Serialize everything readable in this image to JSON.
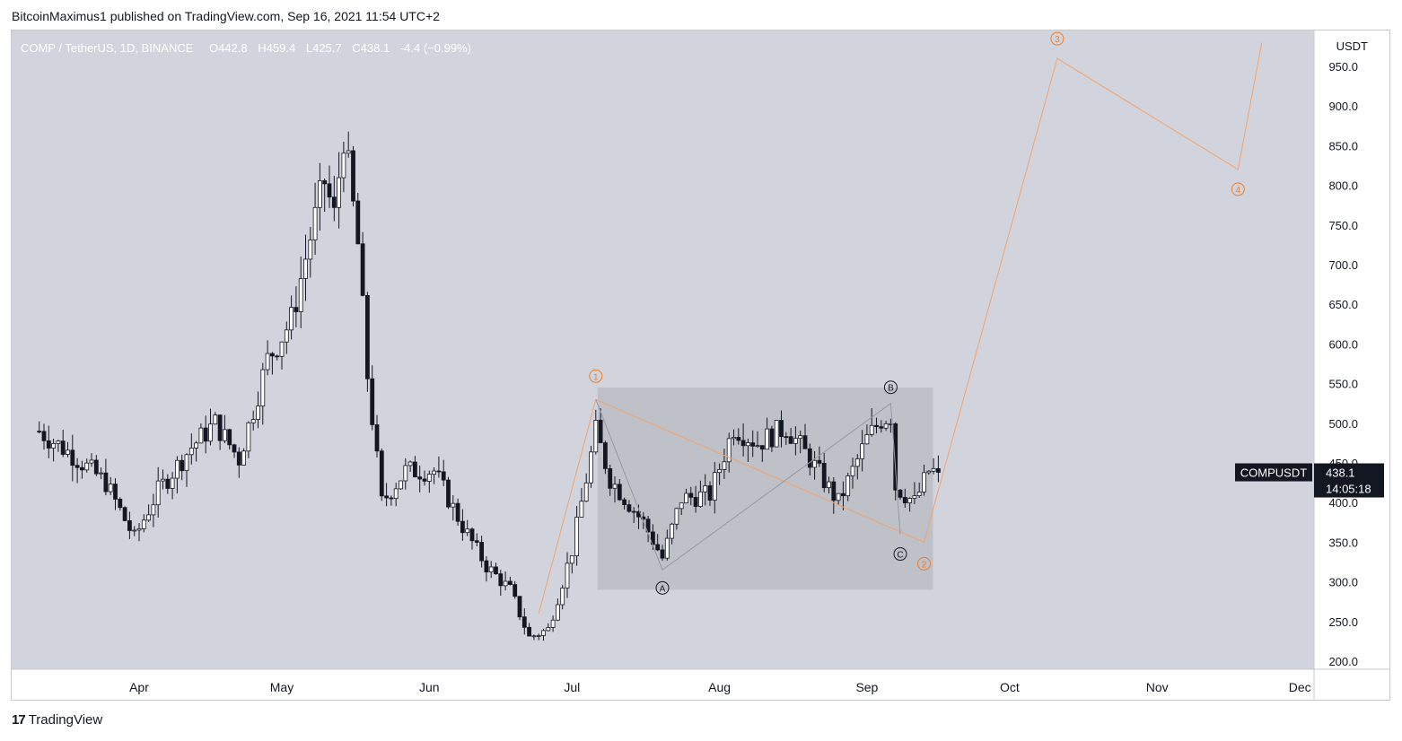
{
  "header": {
    "publisher": "BitcoinMaximus1 published on TradingView.com, Sep 16, 2021 11:54 UTC+2"
  },
  "footer": {
    "brand": "TradingView"
  },
  "legend": {
    "symbol": "COMP / TetherUS, 1D, BINANCE",
    "o_label": "O",
    "open": "442.8",
    "h_label": "H",
    "high": "459.4",
    "l_label": "L",
    "low": "425.7",
    "c_label": "C",
    "close": "438.1",
    "change": "-4.4 (−0.99%)"
  },
  "price_axis": {
    "currency": "USDT",
    "ticks": [
      "950.0",
      "900.0",
      "850.0",
      "800.0",
      "750.0",
      "700.0",
      "650.0",
      "600.0",
      "550.0",
      "500.0",
      "450.0",
      "400.0",
      "350.0",
      "300.0",
      "250.0",
      "200.0"
    ]
  },
  "price_tag": {
    "symbol": "COMPUSDT",
    "price": "438.1",
    "countdown": "14:05:18"
  },
  "colors": {
    "background": "#d1d4dc",
    "bull_candle": "#ffffff",
    "bear_candle": "#131722",
    "wave_orange": "#f5a26a",
    "wave_label_orange": "#f07d2d",
    "box": "#bbbdc3"
  },
  "chart_data": {
    "type": "candlestick",
    "title": "COMP / TetherUS, 1D, BINANCE",
    "xlabel": "",
    "ylabel": "USDT",
    "x_ticks": [
      "Apr",
      "May",
      "Jun",
      "Jul",
      "Aug",
      "Sep",
      "Oct",
      "Nov",
      "Dec"
    ],
    "ylim": [
      190,
      980
    ],
    "series": [
      {
        "name": "COMP / TetherUS",
        "notes": "Daily candles approx. Mar 11 2021 – Sep 16 2021",
        "close_path_points": [
          [
            "2021-03-11",
            490
          ],
          [
            "2021-03-18",
            460
          ],
          [
            "2021-03-25",
            425
          ],
          [
            "2021-03-31",
            355
          ],
          [
            "2021-04-05",
            415
          ],
          [
            "2021-04-12",
            470
          ],
          [
            "2021-04-17",
            500
          ],
          [
            "2021-04-22",
            455
          ],
          [
            "2021-04-28",
            580
          ],
          [
            "2021-05-03",
            630
          ],
          [
            "2021-05-07",
            735
          ],
          [
            "2021-05-10",
            805
          ],
          [
            "2021-05-12",
            760
          ],
          [
            "2021-05-14",
            865
          ],
          [
            "2021-05-17",
            725
          ],
          [
            "2021-05-19",
            560
          ],
          [
            "2021-05-22",
            400
          ],
          [
            "2021-05-27",
            440
          ],
          [
            "2021-06-02",
            440
          ],
          [
            "2021-06-08",
            370
          ],
          [
            "2021-06-13",
            320
          ],
          [
            "2021-06-18",
            290
          ],
          [
            "2021-06-22",
            230
          ],
          [
            "2021-06-26",
            240
          ],
          [
            "2021-07-01",
            340
          ],
          [
            "2021-07-06",
            490
          ],
          [
            "2021-07-09",
            430
          ],
          [
            "2021-07-16",
            375
          ],
          [
            "2021-07-20",
            330
          ],
          [
            "2021-07-24",
            405
          ],
          [
            "2021-07-30",
            410
          ],
          [
            "2021-08-04",
            495
          ],
          [
            "2021-08-09",
            475
          ],
          [
            "2021-08-15",
            495
          ],
          [
            "2021-08-20",
            455
          ],
          [
            "2021-08-26",
            400
          ],
          [
            "2021-09-01",
            480
          ],
          [
            "2021-09-04",
            505
          ],
          [
            "2021-09-06",
            510
          ],
          [
            "2021-09-07",
            420
          ],
          [
            "2021-09-11",
            400
          ],
          [
            "2021-09-14",
            440
          ],
          [
            "2021-09-16",
            438.1
          ]
        ]
      }
    ],
    "annotations": {
      "consolidation_box": {
        "x_from": "2021-07-06",
        "x_to": "2021-09-13",
        "y_from": 290,
        "y_to": 545
      },
      "elliott_waves": [
        {
          "label": "1",
          "date": "2021-07-06",
          "price": 530
        },
        {
          "label": "2",
          "date": "2021-09-13",
          "price": 350
        },
        {
          "label": "3",
          "date": "2021-10-11",
          "price": 960
        },
        {
          "label": "4",
          "date": "2021-11-18",
          "price": 820
        }
      ],
      "abc_correction": [
        {
          "label": "A",
          "date": "2021-07-20",
          "price": 315
        },
        {
          "label": "B",
          "date": "2021-09-06",
          "price": 525
        },
        {
          "label": "C",
          "date": "2021-09-08",
          "price": 360
        }
      ]
    }
  }
}
